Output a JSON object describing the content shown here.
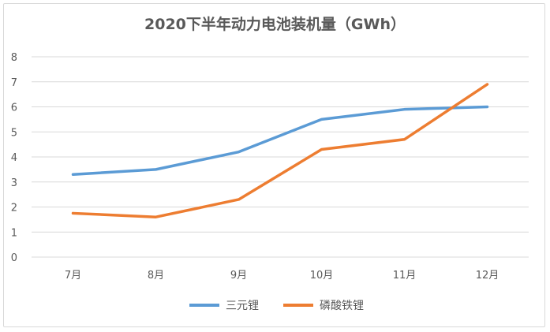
{
  "chart_data": {
    "type": "line",
    "title": "2020下半年动力电池装机量（GWh）",
    "categories": [
      "7月",
      "8月",
      "9月",
      "10月",
      "11月",
      "12月"
    ],
    "series": [
      {
        "name": "三元锂",
        "color": "#5b9bd5",
        "values": [
          3.3,
          3.5,
          4.2,
          5.5,
          5.9,
          6.0
        ]
      },
      {
        "name": "磷酸铁锂",
        "color": "#ed7d31",
        "values": [
          1.75,
          1.6,
          2.3,
          4.3,
          4.7,
          6.9
        ]
      }
    ],
    "ylim": [
      0,
      8
    ],
    "yticks": [
      0,
      1,
      2,
      3,
      4,
      5,
      6,
      7,
      8
    ],
    "grid": true,
    "legend_position": "bottom"
  }
}
